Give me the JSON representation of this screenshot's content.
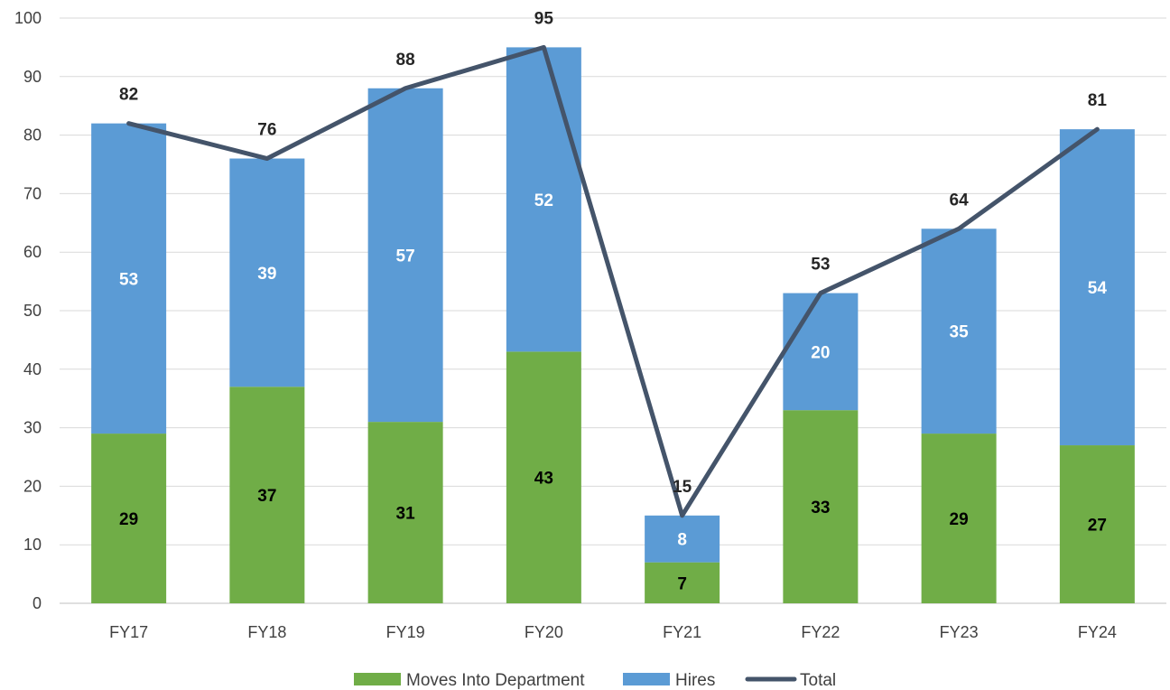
{
  "chart_data": {
    "type": "bar",
    "stacked": true,
    "categories": [
      "FY17",
      "FY18",
      "FY19",
      "FY20",
      "FY21",
      "FY22",
      "FY23",
      "FY24"
    ],
    "series": [
      {
        "name": "Moves Into Department",
        "type": "bar",
        "color": "#70ad47",
        "values": [
          29,
          37,
          31,
          43,
          7,
          33,
          29,
          27
        ]
      },
      {
        "name": "Hires",
        "type": "bar",
        "color": "#5b9bd5",
        "values": [
          53,
          39,
          57,
          52,
          8,
          20,
          35,
          54
        ]
      },
      {
        "name": "Total",
        "type": "line",
        "color": "#44546a",
        "values": [
          82,
          76,
          88,
          95,
          15,
          53,
          64,
          81
        ]
      }
    ],
    "ylim": [
      0,
      100
    ],
    "yticks": [
      0,
      10,
      20,
      30,
      40,
      50,
      60,
      70,
      80,
      90,
      100
    ],
    "grid": true,
    "legend": "bottom",
    "title": "",
    "xlabel": "",
    "ylabel": ""
  }
}
